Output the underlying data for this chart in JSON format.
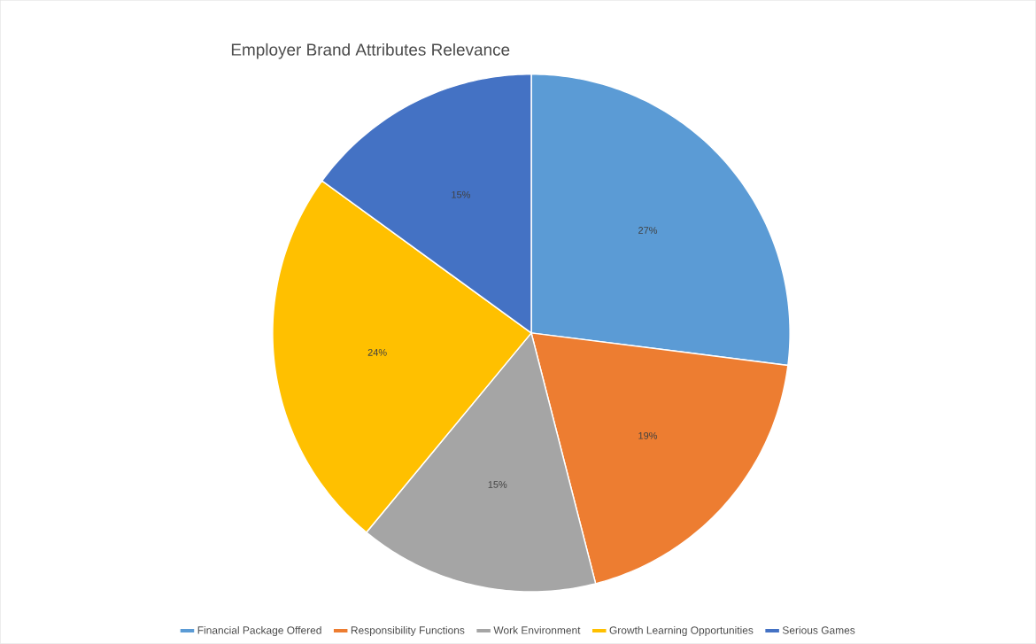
{
  "chart_data": {
    "type": "pie",
    "title": "Employer Brand Attributes Relevance",
    "categories": [
      "Financial Package Offered",
      "Responsibility Functions",
      "Work Environment",
      "Growth Learning Opportunities",
      "Serious Games"
    ],
    "values": [
      27,
      19,
      15,
      24,
      15
    ],
    "value_labels": [
      "27%",
      "19%",
      "15%",
      "24%",
      "15%"
    ],
    "colors": [
      "#5b9bd5",
      "#ed7d31",
      "#a5a5a5",
      "#ffc000",
      "#4472c4"
    ],
    "legend": "bottom"
  }
}
